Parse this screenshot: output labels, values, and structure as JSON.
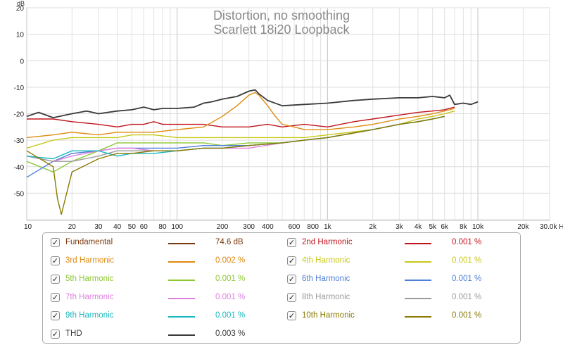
{
  "chart_data": {
    "type": "line",
    "title": "Distortion, no smoothing",
    "subtitle": "Scarlett 18i20 Loopback",
    "xlabel": "Hz",
    "ylabel": "dB",
    "x_scale": "log",
    "xlim": [
      10,
      30000
    ],
    "ylim": [
      -60,
      20
    ],
    "grid": true,
    "x_ticks": [
      {
        "v": 10,
        "label": "10"
      },
      {
        "v": 20,
        "label": "20"
      },
      {
        "v": 30,
        "label": "30"
      },
      {
        "v": 40,
        "label": "40"
      },
      {
        "v": 50,
        "label": "50"
      },
      {
        "v": 60,
        "label": "60"
      },
      {
        "v": 80,
        "label": "80"
      },
      {
        "v": 100,
        "label": "100"
      },
      {
        "v": 200,
        "label": "200"
      },
      {
        "v": 300,
        "label": "300"
      },
      {
        "v": 400,
        "label": "400"
      },
      {
        "v": 600,
        "label": "600"
      },
      {
        "v": 800,
        "label": "800"
      },
      {
        "v": 1000,
        "label": "1k"
      },
      {
        "v": 2000,
        "label": "2k"
      },
      {
        "v": 3000,
        "label": "3k"
      },
      {
        "v": 4000,
        "label": "4k"
      },
      {
        "v": 5000,
        "label": "5k"
      },
      {
        "v": 6000,
        "label": "6k"
      },
      {
        "v": 8000,
        "label": "8k"
      },
      {
        "v": 10000,
        "label": "10k"
      },
      {
        "v": 20000,
        "label": "20k"
      },
      {
        "v": 30000,
        "label": "30.0k Hz"
      }
    ],
    "y_ticks": [
      {
        "v": 20,
        "label": "20"
      },
      {
        "v": 10,
        "label": "10"
      },
      {
        "v": 0,
        "label": "0"
      },
      {
        "v": -10,
        "label": "-10"
      },
      {
        "v": -20,
        "label": "-20"
      },
      {
        "v": -30,
        "label": "-30"
      },
      {
        "v": -40,
        "label": "-40"
      },
      {
        "v": -50,
        "label": "-50"
      }
    ],
    "series": [
      {
        "name": "THD",
        "color": "#3a3a3a",
        "x": [
          10,
          12,
          15,
          20,
          25,
          30,
          40,
          50,
          60,
          70,
          80,
          100,
          130,
          150,
          170,
          200,
          250,
          300,
          330,
          350,
          400,
          500,
          700,
          1000,
          1500,
          2000,
          3000,
          4000,
          5000,
          6000,
          6500,
          7000,
          8000,
          9000,
          10000
        ],
        "y": [
          -21,
          -19.5,
          -21.5,
          -20,
          -19,
          -20,
          -19,
          -18.5,
          -17.5,
          -18.5,
          -18,
          -18,
          -17.5,
          -16,
          -15.5,
          -14.5,
          -13.5,
          -11.5,
          -11,
          -12.5,
          -15,
          -17,
          -16.5,
          -16,
          -15,
          -14.5,
          -14,
          -14,
          -13.5,
          -14,
          -13,
          -16.5,
          -16,
          -16.5,
          -15.5
        ]
      },
      {
        "name": "2nd Harmonic",
        "color": "#c0141c",
        "x": [
          10,
          15,
          20,
          30,
          40,
          50,
          60,
          70,
          80,
          100,
          150,
          200,
          300,
          400,
          500,
          700,
          1000,
          1500,
          2000,
          3000,
          4000,
          5000,
          6000,
          7000
        ],
        "y": [
          -22,
          -22,
          -23,
          -24,
          -25,
          -24,
          -24,
          -23,
          -24,
          -24,
          -24,
          -25,
          -25,
          -24,
          -25,
          -24,
          -25,
          -23,
          -22,
          -20.5,
          -19.5,
          -19,
          -18.5,
          -17.5
        ]
      },
      {
        "name": "3rd Harmonic",
        "color": "#e08a10",
        "x": [
          10,
          15,
          20,
          30,
          40,
          50,
          70,
          100,
          150,
          200,
          250,
          300,
          330,
          350,
          400,
          450,
          500,
          600,
          700,
          1000,
          1500,
          2000,
          3000,
          4000,
          5000,
          6000,
          7000
        ],
        "y": [
          -29,
          -28,
          -27,
          -28,
          -27,
          -27,
          -27,
          -26,
          -25,
          -21,
          -17,
          -13,
          -12,
          -13,
          -17,
          -21,
          -24,
          -25,
          -26,
          -26,
          -25,
          -24,
          -22,
          -21,
          -20,
          -19,
          -18
        ]
      },
      {
        "name": "4th Harmonic",
        "color": "#c8c81a",
        "x": [
          10,
          15,
          20,
          30,
          40,
          50,
          70,
          100,
          150,
          200,
          300,
          500,
          700,
          1000,
          2000,
          3000,
          4000,
          5000,
          6000,
          7000
        ],
        "y": [
          -33,
          -30,
          -29,
          -29,
          -29,
          -28,
          -28,
          -29,
          -29,
          -29,
          -29,
          -29,
          -29,
          -28,
          -26,
          -24,
          -22,
          -21,
          -20,
          -19
        ]
      },
      {
        "name": "5th Harmonic",
        "color": "#8cc832",
        "x": [
          10,
          15,
          20,
          30,
          40,
          50,
          70,
          100,
          150,
          200,
          300,
          500,
          700,
          1000,
          2000,
          3000,
          4000,
          5000,
          6000
        ],
        "y": [
          -38,
          -42,
          -38,
          -34,
          -31,
          -31,
          -31,
          -31,
          -31,
          -32,
          -31,
          -31,
          -30,
          -29,
          -26,
          -24,
          -23,
          -22,
          -21
        ]
      },
      {
        "name": "6th Harmonic",
        "color": "#4f7fd8",
        "x": [
          10,
          15,
          20,
          30,
          40,
          50,
          70,
          100,
          150,
          200,
          300,
          500,
          700,
          1000,
          2000,
          3000,
          4000,
          5000,
          6000
        ],
        "y": [
          -44,
          -38,
          -35,
          -34,
          -33,
          -33,
          -33,
          -33,
          -32,
          -32,
          -32,
          -31,
          -30,
          -29,
          -26,
          -24,
          -23,
          -22,
          -21
        ]
      },
      {
        "name": "7th Harmonic",
        "color": "#e080e0",
        "x": [
          10,
          15,
          20,
          30,
          40,
          50,
          70,
          100,
          150,
          200,
          300,
          500,
          700,
          1000,
          2000,
          3000,
          4000,
          5000,
          6000
        ],
        "y": [
          -36,
          -38,
          -36,
          -34,
          -33,
          -33,
          -34,
          -34,
          -33,
          -33,
          -33,
          -31,
          -30,
          -29,
          -26,
          -24,
          -23,
          -22,
          -21
        ]
      },
      {
        "name": "8th Harmonic",
        "color": "#9a9a9a",
        "x": [
          10,
          15,
          20,
          30,
          40,
          50,
          70,
          100,
          150,
          200,
          300,
          500,
          700,
          1000,
          2000,
          3000,
          4000,
          5000,
          6000
        ],
        "y": [
          -36,
          -38,
          -38,
          -36,
          -34,
          -34,
          -34,
          -34,
          -33,
          -33,
          -32,
          -31,
          -30,
          -29,
          -26,
          -24,
          -23,
          -22,
          -21
        ]
      },
      {
        "name": "9th Harmonic",
        "color": "#18b8c0",
        "x": [
          10,
          15,
          20,
          30,
          40,
          50,
          70,
          100,
          150,
          200,
          300,
          500,
          700,
          1000,
          2000,
          3000,
          4000,
          5000,
          6000
        ],
        "y": [
          -36,
          -37,
          -34,
          -34,
          -36,
          -35,
          -35,
          -34,
          -33,
          -33,
          -32,
          -31,
          -30,
          -29,
          -26,
          -24,
          -23,
          -22,
          -21
        ]
      },
      {
        "name": "10th Harmonic",
        "color": "#8a7a00",
        "x": [
          10,
          15,
          16,
          17,
          20,
          30,
          40,
          50,
          70,
          100,
          150,
          200,
          300,
          500,
          700,
          1000,
          2000,
          3000,
          4000,
          5000,
          6000
        ],
        "y": [
          -34,
          -40,
          -52,
          -58,
          -42,
          -37,
          -35,
          -35,
          -34,
          -34,
          -33,
          -33,
          -32,
          -31,
          -30,
          -29,
          -26,
          -24,
          -23,
          -22,
          -21
        ]
      }
    ]
  },
  "legend": [
    {
      "label": "Fundamental",
      "value": "74.6 dB",
      "color": "#7a3a10",
      "checked": "✓"
    },
    {
      "label": "2nd Harmonic",
      "value": "0.001 %",
      "color": "#c0141c",
      "checked": "✓"
    },
    {
      "label": "3rd Harmonic",
      "value": "0.002 %",
      "color": "#e08a10",
      "checked": "✓"
    },
    {
      "label": "4th Harmonic",
      "value": "0.001 %",
      "color": "#c8c81a",
      "checked": "✓"
    },
    {
      "label": "5th Harmonic",
      "value": "0.001 %",
      "color": "#8cc832",
      "checked": "✓"
    },
    {
      "label": "6th Harmonic",
      "value": "0.001 %",
      "color": "#4f7fd8",
      "checked": "✓"
    },
    {
      "label": "7th Harmonic",
      "value": "0.001 %",
      "color": "#e080e0",
      "checked": "✓"
    },
    {
      "label": "8th Harmonic",
      "value": "0.001 %",
      "color": "#9a9a9a",
      "checked": "✓"
    },
    {
      "label": "9th Harmonic",
      "value": "0.001 %",
      "color": "#18b8c0",
      "checked": "✓"
    },
    {
      "label": "10th Harmonic",
      "value": "0.001 %",
      "color": "#8a7a00",
      "checked": "✓"
    },
    {
      "label": "THD",
      "value": "0.003 %",
      "color": "#3a3a3a",
      "checked": "✓"
    }
  ]
}
